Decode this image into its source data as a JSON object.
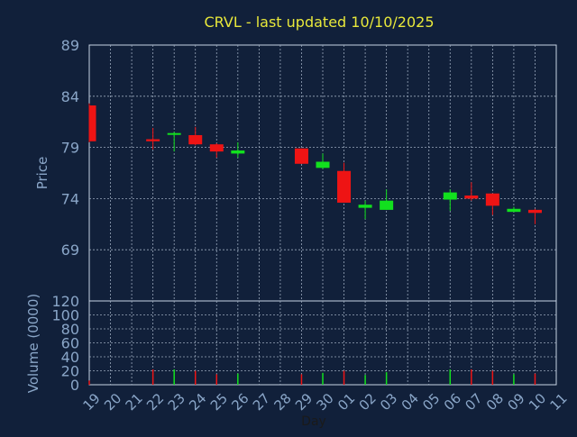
{
  "title": "CRVL - last updated 10/10/2025",
  "colors": {
    "background": "#11203a",
    "title": "#e8e83a",
    "axis_text": "#8aa6c8",
    "axis_line": "#c8d4e4",
    "grid": "#9aa8bc",
    "up": "#12e01e",
    "down": "#ee1414"
  },
  "chart_data": [
    {
      "type": "candlestick",
      "title": "CRVL - last updated 10/10/2025",
      "ylabel": "Price",
      "xlabel": "Day",
      "ylim": [
        64,
        89
      ],
      "yticks": [
        89,
        84,
        79,
        74,
        69
      ],
      "grid": true,
      "x_ticks": [
        "19",
        "20",
        "21",
        "22",
        "23",
        "24",
        "25",
        "26",
        "27",
        "28",
        "29",
        "30",
        "01",
        "02",
        "03",
        "04",
        "05",
        "06",
        "07",
        "08",
        "09",
        "10",
        "11"
      ],
      "candles": [
        {
          "day": "19",
          "open": 83.1,
          "high": 83.3,
          "low": 79.5,
          "close": 79.6
        },
        {
          "day": "22",
          "open": 79.8,
          "high": 80.9,
          "low": 78.8,
          "close": 79.6
        },
        {
          "day": "23",
          "open": 80.3,
          "high": 80.5,
          "low": 78.6,
          "close": 80.4
        },
        {
          "day": "24",
          "open": 80.2,
          "high": 81.0,
          "low": 79.2,
          "close": 79.3
        },
        {
          "day": "25",
          "open": 79.3,
          "high": 79.4,
          "low": 78.0,
          "close": 78.6
        },
        {
          "day": "26",
          "open": 78.4,
          "high": 79.5,
          "low": 78.0,
          "close": 78.7
        },
        {
          "day": "29",
          "open": 78.9,
          "high": 78.9,
          "low": 77.4,
          "close": 77.4
        },
        {
          "day": "30",
          "open": 77.0,
          "high": 78.4,
          "low": 76.9,
          "close": 77.6
        },
        {
          "day": "01",
          "open": 76.7,
          "high": 77.5,
          "low": 73.6,
          "close": 73.6
        },
        {
          "day": "02",
          "open": 73.1,
          "high": 73.8,
          "low": 72.0,
          "close": 73.4
        },
        {
          "day": "03",
          "open": 72.9,
          "high": 74.9,
          "low": 72.9,
          "close": 73.8
        },
        {
          "day": "06",
          "open": 73.9,
          "high": 74.9,
          "low": 72.8,
          "close": 74.6
        },
        {
          "day": "07",
          "open": 74.3,
          "high": 75.6,
          "low": 73.8,
          "close": 74.0
        },
        {
          "day": "08",
          "open": 74.5,
          "high": 74.5,
          "low": 72.4,
          "close": 73.3
        },
        {
          "day": "09",
          "open": 72.7,
          "high": 73.2,
          "low": 72.7,
          "close": 73.0
        },
        {
          "day": "10",
          "open": 72.9,
          "high": 73.0,
          "low": 71.5,
          "close": 72.6
        }
      ]
    },
    {
      "type": "bar",
      "ylabel": "Volume (0000)",
      "xlabel": "Day",
      "ylim": [
        0,
        120
      ],
      "yticks": [
        120,
        100,
        80,
        60,
        40,
        20,
        0
      ],
      "grid": true,
      "categories": [
        "19",
        "22",
        "23",
        "24",
        "25",
        "26",
        "29",
        "30",
        "01",
        "02",
        "03",
        "06",
        "07",
        "08",
        "09",
        "10"
      ],
      "values": [
        6,
        22,
        22,
        20,
        15,
        16,
        15,
        17,
        20,
        14,
        18,
        22,
        22,
        20,
        15,
        16
      ]
    }
  ]
}
